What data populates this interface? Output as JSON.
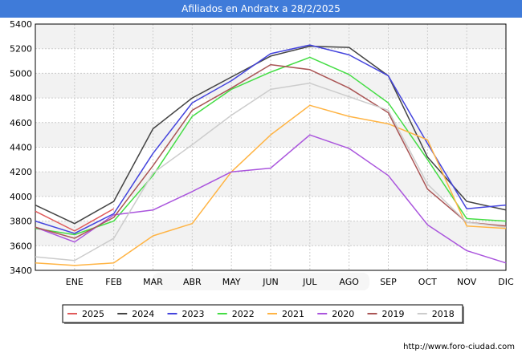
{
  "page": {
    "title": "Afiliados en Andratx a 28/2/2025",
    "source_url": "http://www.foro-ciudad.com"
  },
  "colors": {
    "title_bg": "#3f7bd9",
    "plot_band": "#f2f2f2",
    "grid": "#cccccc"
  },
  "chart_data": {
    "type": "line",
    "title": "Afiliados en Andratx a 28/2/2025",
    "xlabel": "",
    "ylabel": "",
    "ylim": [
      3400,
      5400
    ],
    "y_ticks": [
      3400,
      3600,
      3800,
      4000,
      4200,
      4400,
      4600,
      4800,
      5000,
      5200,
      5400
    ],
    "x_ticks": [
      "ENE",
      "FEB",
      "MAR",
      "ABR",
      "MAY",
      "JUN",
      "JUL",
      "AGO",
      "SEP",
      "OCT",
      "NOV",
      "DIC"
    ],
    "grid": true,
    "legend_position": "bottom",
    "series": [
      {
        "name": "2025",
        "color": "#e05a5a",
        "values": [
          3880,
          3720,
          3900
        ]
      },
      {
        "name": "2024",
        "color": "#444444",
        "values": [
          3930,
          3780,
          3960,
          4550,
          4800,
          4970,
          5140,
          5220,
          5210,
          4980,
          4320,
          3960,
          3890
        ]
      },
      {
        "name": "2023",
        "color": "#4444dd",
        "values": [
          3800,
          3700,
          3860,
          4350,
          4760,
          4940,
          5160,
          5230,
          5150,
          4980,
          4430,
          3900,
          3930
        ]
      },
      {
        "name": "2022",
        "color": "#44dd44",
        "values": [
          3740,
          3690,
          3800,
          4170,
          4650,
          4870,
          5010,
          5130,
          4990,
          4760,
          4300,
          3820,
          3800
        ]
      },
      {
        "name": "2021",
        "color": "#ffb444",
        "values": [
          3460,
          3440,
          3460,
          3680,
          3780,
          4200,
          4500,
          4740,
          4650,
          4590,
          4460,
          3760,
          3740
        ]
      },
      {
        "name": "2020",
        "color": "#aa55dd",
        "values": [
          3750,
          3630,
          3850,
          3890,
          4040,
          4200,
          4230,
          4500,
          4390,
          4170,
          3770,
          3560,
          3460
        ]
      },
      {
        "name": "2019",
        "color": "#aa5555",
        "values": [
          3750,
          3660,
          3830,
          4250,
          4700,
          4880,
          5070,
          5030,
          4880,
          4680,
          4060,
          3790,
          3760
        ]
      },
      {
        "name": "2018",
        "color": "#cccccc",
        "values": [
          3510,
          3480,
          3660,
          4190,
          4420,
          4660,
          4870,
          4920,
          4810,
          4700,
          4100,
          3790,
          3750
        ]
      }
    ]
  }
}
